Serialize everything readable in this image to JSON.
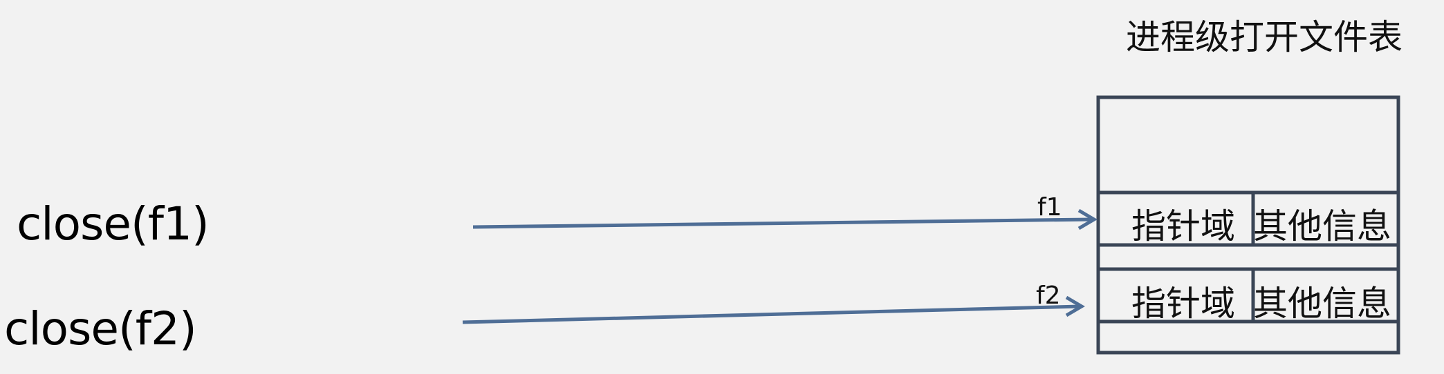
{
  "table_title": "进程级打开文件表",
  "calls": [
    "close(f1)",
    "close(f2)"
  ],
  "pointer_labels": [
    "f1",
    "f2"
  ],
  "rows": [
    {
      "pointer_field": "指针域",
      "other_info": "其他信息"
    },
    {
      "pointer_field": "指针域",
      "other_info": "其他信息"
    }
  ],
  "colors": {
    "background": "#f2f2f2",
    "table_border": "#3a4556",
    "arrow": "#4f6e96"
  }
}
